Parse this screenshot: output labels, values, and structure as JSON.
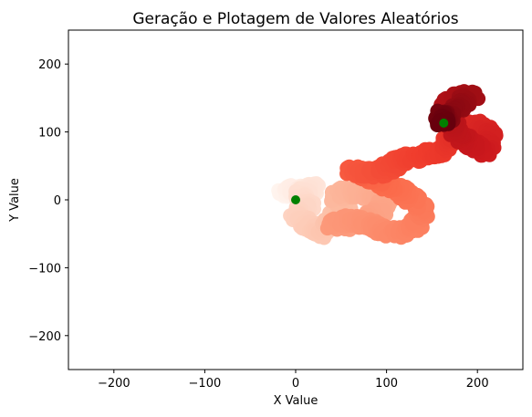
{
  "chart_data": {
    "type": "scatter",
    "title": "Geração e Plotagem de Valores Aleatórios",
    "xlabel": "X Value",
    "ylabel": "Y Value",
    "xlim": [
      -250,
      250
    ],
    "ylim": [
      -250,
      250
    ],
    "xticks": [
      -200,
      -100,
      0,
      100,
      200
    ],
    "yticks": [
      -200,
      -100,
      0,
      100,
      200
    ],
    "xtick_labels": [
      "−200",
      "−100",
      "0",
      "100",
      "200"
    ],
    "ytick_labels": [
      "−200",
      "−100",
      "0",
      "100",
      "200"
    ],
    "grid": false,
    "colormap": "Reds",
    "colors": {
      "path_start": "#fff0ea",
      "path_mid": "#f24a36",
      "path_end": "#67000d",
      "endpoint_marker": "#008000"
    },
    "walk_path": [
      {
        "x": -15,
        "y": 8
      },
      {
        "x": -5,
        "y": 15
      },
      {
        "x": 8,
        "y": 12
      },
      {
        "x": 20,
        "y": 18
      },
      {
        "x": 5,
        "y": 5
      },
      {
        "x": 15,
        "y": -8
      },
      {
        "x": 0,
        "y": -20
      },
      {
        "x": 10,
        "y": -35
      },
      {
        "x": 25,
        "y": -50
      },
      {
        "x": 40,
        "y": -30
      },
      {
        "x": 55,
        "y": -10
      },
      {
        "x": 45,
        "y": 5
      },
      {
        "x": 55,
        "y": 12
      },
      {
        "x": 70,
        "y": 10
      },
      {
        "x": 85,
        "y": 5
      },
      {
        "x": 100,
        "y": 3
      },
      {
        "x": 95,
        "y": -15
      },
      {
        "x": 80,
        "y": -25
      },
      {
        "x": 60,
        "y": -38
      },
      {
        "x": 40,
        "y": -35
      },
      {
        "x": 60,
        "y": -30
      },
      {
        "x": 80,
        "y": -35
      },
      {
        "x": 95,
        "y": -45
      },
      {
        "x": 115,
        "y": -50
      },
      {
        "x": 130,
        "y": -40
      },
      {
        "x": 140,
        "y": -20
      },
      {
        "x": 135,
        "y": -5
      },
      {
        "x": 120,
        "y": 10
      },
      {
        "x": 105,
        "y": 20
      },
      {
        "x": 90,
        "y": 30
      },
      {
        "x": 75,
        "y": 35
      },
      {
        "x": 60,
        "y": 45
      },
      {
        "x": 70,
        "y": 40
      },
      {
        "x": 90,
        "y": 40
      },
      {
        "x": 105,
        "y": 50
      },
      {
        "x": 120,
        "y": 62
      },
      {
        "x": 140,
        "y": 65
      },
      {
        "x": 160,
        "y": 72
      },
      {
        "x": 172,
        "y": 90
      },
      {
        "x": 185,
        "y": 105
      },
      {
        "x": 200,
        "y": 110
      },
      {
        "x": 215,
        "y": 95
      },
      {
        "x": 210,
        "y": 70
      },
      {
        "x": 195,
        "y": 80
      },
      {
        "x": 180,
        "y": 95
      },
      {
        "x": 170,
        "y": 115
      },
      {
        "x": 165,
        "y": 135
      },
      {
        "x": 175,
        "y": 150
      },
      {
        "x": 195,
        "y": 155
      },
      {
        "x": 180,
        "y": 140
      },
      {
        "x": 165,
        "y": 120
      },
      {
        "x": 160,
        "y": 125
      },
      {
        "x": 163,
        "y": 113
      }
    ],
    "start_point": {
      "x": 0,
      "y": 0
    },
    "end_point": {
      "x": 163,
      "y": 113
    }
  }
}
